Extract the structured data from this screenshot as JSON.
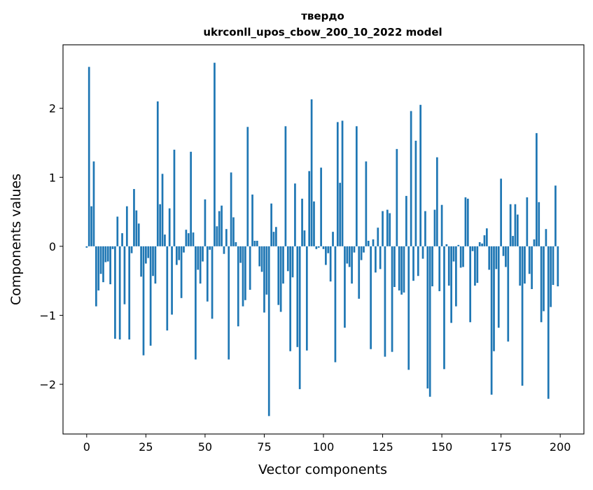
{
  "chart_data": {
    "type": "bar",
    "title_line1": "твердо",
    "title_line2": "ukrconll_upos_cbow_200_10_2022 model",
    "xlabel": "Vector components",
    "ylabel": "Components values",
    "xlim": [
      -10,
      210
    ],
    "ylim": [
      -2.72,
      2.92
    ],
    "xticks": [
      0,
      25,
      50,
      75,
      100,
      125,
      150,
      175,
      200
    ],
    "yticks": [
      -2,
      -1,
      0,
      1,
      2
    ],
    "bar_color": "#1f77b4",
    "grid": false,
    "values": [
      -0.02,
      2.6,
      0.58,
      1.23,
      -0.87,
      -0.64,
      -0.4,
      -0.52,
      -0.23,
      -0.22,
      -0.55,
      -0.04,
      -1.34,
      0.43,
      -1.35,
      0.19,
      -0.84,
      0.58,
      -1.35,
      -0.1,
      0.83,
      0.52,
      0.33,
      -0.44,
      -1.58,
      -0.25,
      -0.17,
      -1.44,
      -0.43,
      -0.54,
      2.1,
      0.61,
      1.05,
      0.17,
      -1.22,
      0.55,
      -0.99,
      1.4,
      -0.27,
      -0.2,
      -0.75,
      -0.09,
      0.24,
      0.19,
      1.37,
      0.2,
      -1.64,
      -0.34,
      -0.54,
      -0.22,
      0.68,
      -0.8,
      -0.05,
      -1.05,
      2.66,
      0.29,
      0.51,
      0.59,
      -0.11,
      0.25,
      -1.64,
      1.07,
      0.42,
      0.06,
      -1.16,
      -0.24,
      -0.87,
      -0.78,
      1.73,
      -0.63,
      0.75,
      0.08,
      0.08,
      -0.29,
      -0.37,
      -0.96,
      -0.7,
      -2.46,
      0.62,
      0.21,
      0.28,
      -0.85,
      -0.95,
      -0.54,
      1.74,
      -0.36,
      -1.52,
      -0.45,
      0.91,
      -1.46,
      -2.07,
      0.69,
      0.23,
      -1.51,
      1.09,
      2.13,
      0.65,
      -0.04,
      -0.02,
      1.14,
      -0.04,
      -0.27,
      -0.1,
      -0.51,
      0.21,
      -1.68,
      1.8,
      0.92,
      1.82,
      -1.18,
      -0.25,
      -0.3,
      -0.54,
      -0.09,
      1.74,
      -0.76,
      -0.2,
      -0.09,
      1.23,
      0.08,
      -1.49,
      0.1,
      -0.38,
      0.27,
      -0.33,
      0.51,
      -1.6,
      0.53,
      0.48,
      -1.53,
      -0.59,
      1.41,
      -0.64,
      -0.7,
      -0.67,
      0.73,
      -1.79,
      1.96,
      -0.5,
      1.53,
      -0.43,
      2.05,
      -0.18,
      0.51,
      -2.06,
      -2.18,
      -0.58,
      0.53,
      1.29,
      -0.65,
      0.6,
      -1.78,
      0.03,
      -0.57,
      -1.11,
      -0.22,
      -0.87,
      0.02,
      -0.31,
      -0.3,
      0.71,
      0.69,
      -1.1,
      -0.07,
      -0.57,
      -0.53,
      0.06,
      0.04,
      0.16,
      0.26,
      -0.34,
      -2.15,
      -1.52,
      -0.33,
      -1.18,
      0.98,
      -0.14,
      -0.3,
      -1.38,
      0.61,
      0.15,
      0.61,
      0.46,
      -0.57,
      -2.02,
      -0.54,
      0.71,
      -0.4,
      -0.62,
      0.1,
      1.64,
      0.64,
      -1.1,
      -0.94,
      0.25,
      -2.21,
      -0.88,
      -0.56,
      0.88,
      -0.58
    ]
  }
}
